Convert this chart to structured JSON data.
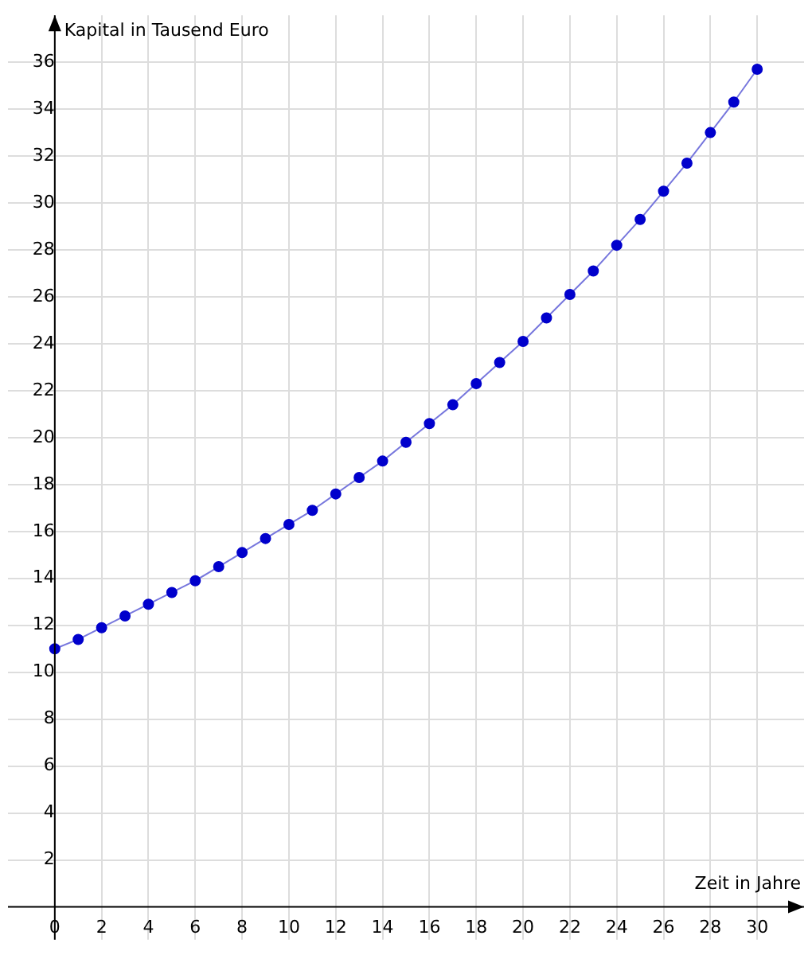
{
  "chart_data": {
    "type": "line",
    "xlabel": "Zeit in Jahre",
    "ylabel": "Kapital in Tausend Euro",
    "x": [
      0,
      1,
      2,
      3,
      4,
      5,
      6,
      7,
      8,
      9,
      10,
      11,
      12,
      13,
      14,
      15,
      16,
      17,
      18,
      19,
      20,
      21,
      22,
      23,
      24,
      25,
      26,
      27,
      28,
      29,
      30
    ],
    "series": [
      {
        "color": "#0000cc",
        "values": [
          11.0,
          11.4,
          11.9,
          12.4,
          12.9,
          13.4,
          13.9,
          14.5,
          15.1,
          15.7,
          16.3,
          16.9,
          17.6,
          18.3,
          19.0,
          19.8,
          20.6,
          21.4,
          22.3,
          23.2,
          24.1,
          25.1,
          26.1,
          27.1,
          28.2,
          29.3,
          30.5,
          31.7,
          33.0,
          34.3,
          35.7
        ]
      }
    ],
    "xlim": [
      -2,
      32
    ],
    "ylim": [
      -1.4,
      38
    ],
    "xticks": [
      0,
      2,
      4,
      6,
      8,
      10,
      12,
      14,
      16,
      18,
      20,
      22,
      24,
      26,
      28,
      30
    ],
    "yticks": [
      2,
      4,
      6,
      8,
      10,
      12,
      14,
      16,
      18,
      20,
      22,
      24,
      26,
      28,
      30,
      32,
      34,
      36
    ],
    "grid": true,
    "marker": "circle",
    "line_style": "solid",
    "legend": false
  }
}
